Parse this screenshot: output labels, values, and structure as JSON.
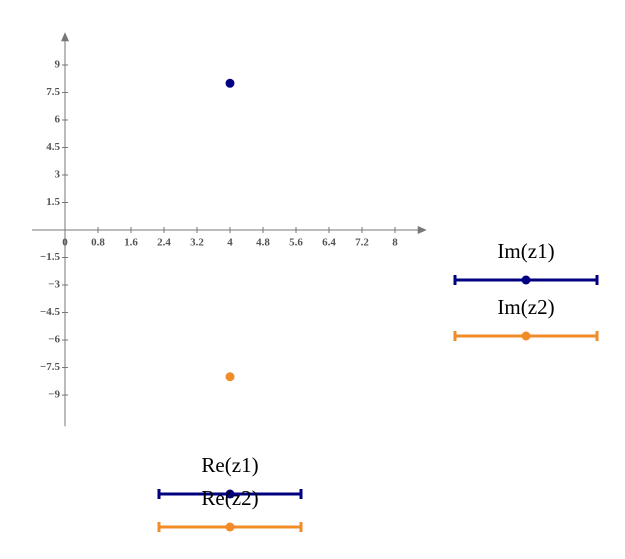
{
  "chart_data": {
    "type": "scatter",
    "series": [
      {
        "x_name": "Re(z1)",
        "y_name": "Im(z1)",
        "color": "#000080",
        "x": [
          4
        ],
        "values": [
          8
        ]
      },
      {
        "x_name": "Re(z2)",
        "y_name": "Im(z2)",
        "color": "#f28c28",
        "x": [
          4
        ],
        "values": [
          -8
        ]
      }
    ],
    "xlim": [
      -0.8,
      8.6
    ],
    "ylim": [
      -10.7,
      10.4
    ],
    "xticks": [
      0,
      0.8,
      1.6,
      2.4,
      3.2,
      4,
      4.8,
      5.6,
      6.4,
      7.2,
      8
    ],
    "yticks": [
      9,
      7.5,
      6,
      4.5,
      3,
      1.5,
      {
        "value": -1.5,
        "label": "−1.5"
      },
      {
        "value": -3,
        "label": "−3"
      },
      {
        "value": -4.5,
        "label": "−4.5"
      },
      {
        "value": -6,
        "label": "−6"
      },
      {
        "value": -7.5,
        "label": "−7.5"
      },
      {
        "value": -9,
        "label": "−9"
      }
    ]
  }
}
